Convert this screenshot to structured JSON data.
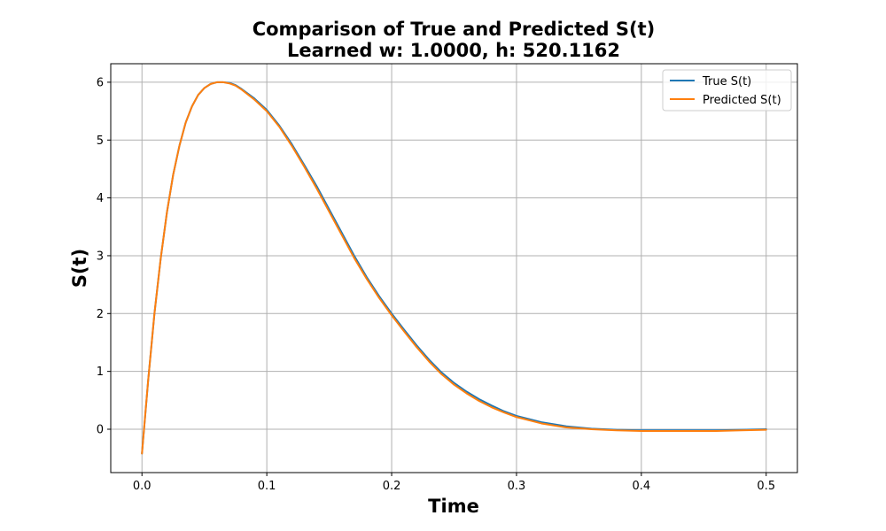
{
  "chart_data": {
    "type": "line",
    "title": "Comparison of True and Predicted S(t)",
    "subtitle": "Learned w: 1.0000, h: 520.1162",
    "xlabel": "Time",
    "ylabel": "S(t)",
    "xlim": [
      -0.025,
      0.525
    ],
    "ylim": [
      -0.75,
      6.32
    ],
    "xticks": [
      0.0,
      0.1,
      0.2,
      0.3,
      0.4,
      0.5
    ],
    "xtick_labels": [
      "0.0",
      "0.1",
      "0.2",
      "0.3",
      "0.4",
      "0.5"
    ],
    "yticks": [
      0,
      1,
      2,
      3,
      4,
      5,
      6
    ],
    "ytick_labels": [
      "0",
      "1",
      "2",
      "3",
      "4",
      "5",
      "6"
    ],
    "grid": true,
    "legend_position": "top-right",
    "series": [
      {
        "name": "True S(t)",
        "color": "#1f77b4",
        "x": [
          0.0,
          0.005,
          0.01,
          0.015,
          0.02,
          0.025,
          0.03,
          0.035,
          0.04,
          0.045,
          0.05,
          0.055,
          0.06,
          0.065,
          0.07,
          0.075,
          0.08,
          0.09,
          0.1,
          0.11,
          0.12,
          0.13,
          0.14,
          0.15,
          0.16,
          0.17,
          0.18,
          0.19,
          0.2,
          0.21,
          0.22,
          0.23,
          0.24,
          0.25,
          0.26,
          0.27,
          0.28,
          0.29,
          0.3,
          0.32,
          0.34,
          0.36,
          0.38,
          0.4,
          0.42,
          0.44,
          0.46,
          0.48,
          0.5
        ],
        "values": [
          -0.42,
          0.85,
          2.0,
          2.95,
          3.75,
          4.4,
          4.9,
          5.3,
          5.58,
          5.78,
          5.9,
          5.97,
          6.0,
          6.0,
          5.99,
          5.95,
          5.88,
          5.72,
          5.52,
          5.25,
          4.93,
          4.57,
          4.2,
          3.8,
          3.4,
          3.0,
          2.63,
          2.3,
          2.0,
          1.72,
          1.45,
          1.2,
          0.98,
          0.8,
          0.65,
          0.52,
          0.41,
          0.31,
          0.23,
          0.12,
          0.05,
          0.01,
          -0.01,
          -0.02,
          -0.02,
          -0.02,
          -0.02,
          -0.01,
          0.0
        ]
      },
      {
        "name": "Predicted S(t)",
        "color": "#ff7f0e",
        "x": [
          0.0,
          0.005,
          0.01,
          0.015,
          0.02,
          0.025,
          0.03,
          0.035,
          0.04,
          0.045,
          0.05,
          0.055,
          0.06,
          0.065,
          0.07,
          0.075,
          0.08,
          0.09,
          0.1,
          0.11,
          0.12,
          0.13,
          0.14,
          0.15,
          0.16,
          0.17,
          0.18,
          0.19,
          0.2,
          0.21,
          0.22,
          0.23,
          0.24,
          0.25,
          0.26,
          0.27,
          0.28,
          0.29,
          0.3,
          0.32,
          0.34,
          0.36,
          0.38,
          0.4,
          0.42,
          0.44,
          0.46,
          0.48,
          0.5
        ],
        "values": [
          -0.42,
          0.85,
          2.0,
          2.95,
          3.75,
          4.4,
          4.9,
          5.3,
          5.58,
          5.78,
          5.9,
          5.97,
          6.0,
          6.0,
          5.98,
          5.94,
          5.87,
          5.7,
          5.5,
          5.23,
          4.9,
          4.54,
          4.16,
          3.76,
          3.36,
          2.96,
          2.6,
          2.27,
          1.97,
          1.69,
          1.42,
          1.17,
          0.95,
          0.77,
          0.62,
          0.49,
          0.38,
          0.29,
          0.21,
          0.1,
          0.03,
          0.0,
          -0.02,
          -0.03,
          -0.03,
          -0.03,
          -0.03,
          -0.02,
          -0.01
        ]
      }
    ]
  }
}
